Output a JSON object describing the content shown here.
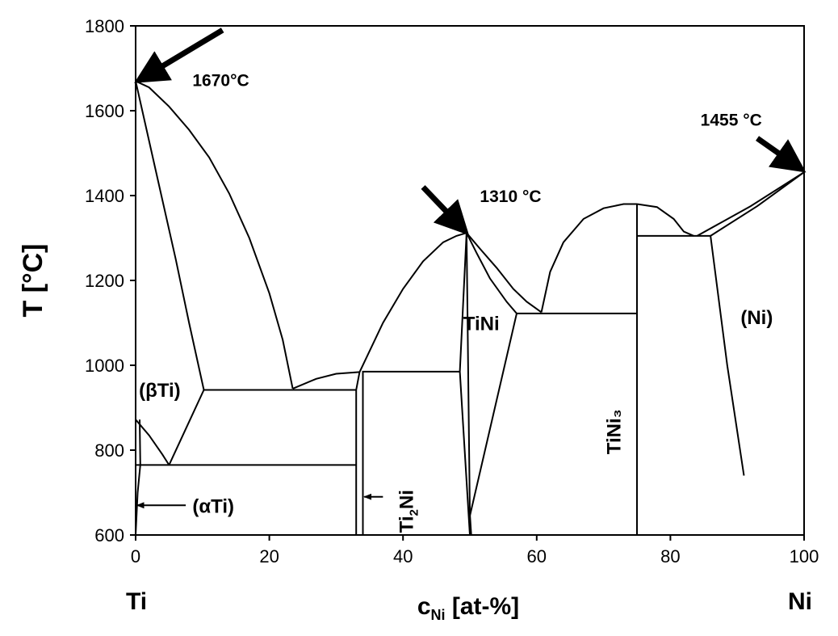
{
  "chart_data": {
    "type": "line",
    "title": "",
    "xlabel": {
      "main": "c",
      "sub": "Ni",
      "rest": " [at-%]"
    },
    "ylabel": "T [°C]",
    "xlim": [
      0,
      100
    ],
    "ylim": [
      600,
      1800
    ],
    "x_ticks": [
      0,
      20,
      40,
      60,
      80,
      100
    ],
    "y_ticks": [
      600,
      800,
      1000,
      1200,
      1400,
      1600,
      1800
    ],
    "grid": false,
    "element_left": "Ti",
    "element_right": "Ni",
    "annotations": [
      {
        "id": "ti-melt",
        "text": "1670°C",
        "x": 8.5,
        "y": 1658
      },
      {
        "id": "tini-melt",
        "text": "1310 °C",
        "x": 51.5,
        "y": 1385
      },
      {
        "id": "ni-melt",
        "text": "1455 °C",
        "x": 84.5,
        "y": 1565
      }
    ],
    "phase_labels": [
      {
        "id": "beta-ti",
        "text": "(βTi)",
        "x": 0.5,
        "y": 926
      },
      {
        "id": "tini",
        "text": "TiNi",
        "x": 49.0,
        "y": 1083
      },
      {
        "id": "ni",
        "text": "(Ni)",
        "x": 90.5,
        "y": 1097
      }
    ],
    "alpha_ti_label": {
      "text": "(αTi)",
      "x": 8.5,
      "y": 670
    },
    "ti2ni_label": {
      "main": "Ti",
      "sub": "2",
      "rest": "Ni",
      "x": 41.5,
      "y": 605
    },
    "tini3_label": {
      "text": "TiNi₃",
      "x": 72.5,
      "y": 790
    },
    "arrows": [
      {
        "id": "arrow-ti-melt",
        "from": [
          13,
          1790
        ],
        "to": [
          0.5,
          1672
        ]
      },
      {
        "id": "arrow-tini-melt",
        "from": [
          43,
          1420
        ],
        "to": [
          49.3,
          1316
        ]
      },
      {
        "id": "arrow-ni-melt",
        "from": [
          93,
          1535
        ],
        "to": [
          99.6,
          1462
        ]
      },
      {
        "id": "arrow-alpha-ti",
        "from": [
          7.5,
          670
        ],
        "to": [
          0.2,
          670
        ]
      },
      {
        "id": "arrow-ti2ni",
        "from": [
          37,
          690
        ],
        "to": [
          34.2,
          690
        ]
      }
    ],
    "series": [
      {
        "name": "",
        "points": [
          [
            0,
            1670
          ],
          [
            2,
            1655
          ],
          [
            5,
            1610
          ],
          [
            8,
            1555
          ],
          [
            11,
            1490
          ],
          [
            14,
            1405
          ],
          [
            17,
            1300
          ],
          [
            20,
            1170
          ],
          [
            22,
            1060
          ],
          [
            23.5,
            945
          ]
        ]
      },
      {
        "name": "",
        "points": [
          [
            0,
            1670
          ],
          [
            3,
            1460
          ],
          [
            6,
            1250
          ],
          [
            8,
            1100
          ],
          [
            10.2,
            942
          ]
        ]
      },
      {
        "name": "",
        "points": [
          [
            0,
            872
          ],
          [
            2,
            835
          ],
          [
            4,
            790
          ],
          [
            5,
            765
          ]
        ]
      },
      {
        "name": "",
        "points": [
          [
            5,
            765
          ],
          [
            10.2,
            942
          ]
        ]
      },
      {
        "name": "",
        "points": [
          [
            0,
            600
          ],
          [
            0.3,
            700
          ],
          [
            0.7,
            765
          ],
          [
            0.6,
            872
          ]
        ]
      },
      {
        "name": "",
        "points": [
          [
            0,
            600
          ],
          [
            0,
            1670
          ]
        ]
      },
      {
        "name": "",
        "points": [
          [
            0,
            765
          ],
          [
            33,
            765
          ]
        ]
      },
      {
        "name": "",
        "points": [
          [
            10.2,
            942
          ],
          [
            33,
            942
          ]
        ]
      },
      {
        "name": "",
        "points": [
          [
            23.5,
            945
          ],
          [
            27,
            968
          ],
          [
            30,
            980
          ],
          [
            33.5,
            984
          ]
        ]
      },
      {
        "name": "",
        "points": [
          [
            33.5,
            984
          ],
          [
            37,
            1100
          ],
          [
            40,
            1180
          ],
          [
            43,
            1245
          ],
          [
            46,
            1290
          ],
          [
            48,
            1305
          ],
          [
            49.5,
            1312
          ]
        ]
      },
      {
        "name": "",
        "points": [
          [
            33,
            600
          ],
          [
            33,
            942
          ],
          [
            33.5,
            984
          ]
        ]
      },
      {
        "name": "",
        "points": [
          [
            34,
            600
          ],
          [
            34,
            985
          ],
          [
            48.5,
            985
          ]
        ]
      },
      {
        "name": "",
        "points": [
          [
            49.5,
            1312
          ],
          [
            48.5,
            985
          ],
          [
            50,
            600
          ]
        ]
      },
      {
        "name": "",
        "points": [
          [
            49.5,
            1312
          ],
          [
            50,
            650
          ],
          [
            50.2,
            600
          ]
        ]
      },
      {
        "name": "",
        "points": [
          [
            49.5,
            1312
          ],
          [
            51,
            1265
          ],
          [
            53,
            1205
          ],
          [
            55.5,
            1150
          ],
          [
            57,
            1122
          ]
        ]
      },
      {
        "name": "",
        "points": [
          [
            49.5,
            1312
          ],
          [
            51.5,
            1275
          ],
          [
            54,
            1230
          ],
          [
            56.5,
            1180
          ],
          [
            58.5,
            1150
          ],
          [
            60.7,
            1125
          ]
        ]
      },
      {
        "name": "",
        "points": [
          [
            57,
            1122
          ],
          [
            75,
            1122
          ]
        ]
      },
      {
        "name": "",
        "points": [
          [
            50,
            645
          ],
          [
            57,
            1122
          ]
        ]
      },
      {
        "name": "",
        "points": [
          [
            60.7,
            1125
          ],
          [
            62,
            1220
          ],
          [
            64,
            1290
          ],
          [
            67,
            1345
          ],
          [
            70,
            1370
          ],
          [
            73,
            1380
          ],
          [
            75,
            1380
          ]
        ]
      },
      {
        "name": "",
        "points": [
          [
            75,
            1380
          ],
          [
            78,
            1373
          ],
          [
            80.5,
            1345
          ],
          [
            82,
            1315
          ],
          [
            83.5,
            1305
          ]
        ]
      },
      {
        "name": "",
        "points": [
          [
            75,
            600
          ],
          [
            75,
            1380
          ]
        ]
      },
      {
        "name": "",
        "points": [
          [
            75,
            1305
          ],
          [
            86,
            1305
          ]
        ]
      },
      {
        "name": "",
        "points": [
          [
            84,
            1305
          ],
          [
            92,
            1375
          ],
          [
            100,
            1455
          ]
        ]
      },
      {
        "name": "",
        "points": [
          [
            86,
            1305
          ],
          [
            93,
            1375
          ],
          [
            100,
            1455
          ]
        ]
      },
      {
        "name": "",
        "points": [
          [
            86,
            1305
          ],
          [
            88.5,
            1000
          ],
          [
            91,
            740
          ]
        ]
      }
    ]
  }
}
